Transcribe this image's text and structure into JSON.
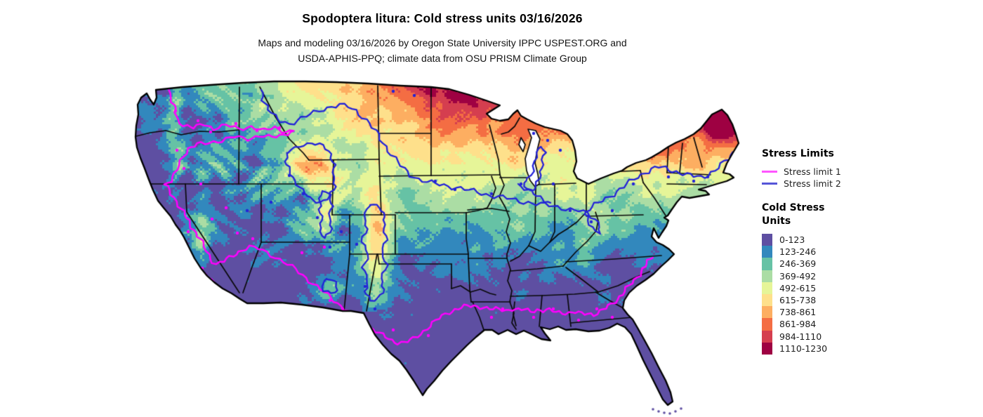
{
  "header": {
    "title": "Spodoptera litura: Cold stress units 03/16/2026",
    "subtitle_line1": "Maps and modeling 03/16/2026 by Oregon State University IPPC USPEST.ORG and",
    "subtitle_line2": "USDA-APHIS-PPQ; climate data from OSU PRISM Climate Group"
  },
  "legend": {
    "stress_limits_title": "Stress Limits",
    "stress_limits": [
      {
        "label": "Stress limit 1",
        "color": "#ff55ff"
      },
      {
        "label": "Stress limit 2",
        "color": "#5555d8"
      }
    ],
    "cold_stress_title_line1": "Cold Stress",
    "cold_stress_title_line2": "Units",
    "classes": [
      {
        "range": "0-123",
        "color": "#5e4fa2"
      },
      {
        "range": "123-246",
        "color": "#3288bd"
      },
      {
        "range": "246-369",
        "color": "#66c2a5"
      },
      {
        "range": "369-492",
        "color": "#abdda4"
      },
      {
        "range": "492-615",
        "color": "#e6f598"
      },
      {
        "range": "615-738",
        "color": "#fee08b"
      },
      {
        "range": "738-861",
        "color": "#fdae61"
      },
      {
        "range": "861-984",
        "color": "#f46d43"
      },
      {
        "range": "984-1110",
        "color": "#d53e4f"
      },
      {
        "range": "1110-1230",
        "color": "#9e0142"
      }
    ]
  },
  "map": {
    "region": "Continental United States",
    "stress_limit_1_color": "#ff00ff",
    "stress_limit_2_color": "#2323d8",
    "state_border_color": "#0a0a0a",
    "value_thresholds": [
      123,
      246,
      369,
      492,
      615,
      738,
      861,
      984,
      1110,
      1230
    ]
  }
}
